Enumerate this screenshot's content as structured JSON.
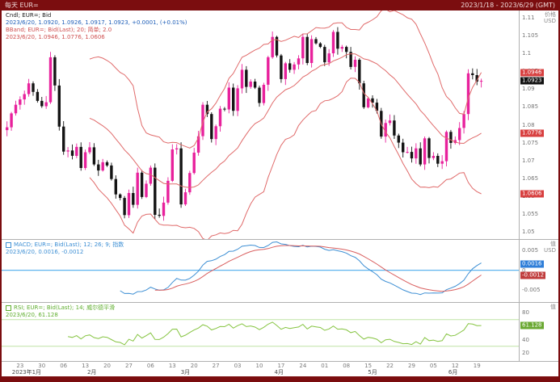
{
  "window": {
    "title_left": "每天 EUR=",
    "title_right": "2023/1/18 - 2023/6/29 (GMT)"
  },
  "colors": {
    "frame": "#7b0d0f",
    "up_candle": "#e8219c",
    "down_candle": "#141414",
    "bollinger": "#e06a6a",
    "macd_line": "#3d8fd4",
    "macd_signal": "#d95f5f",
    "macd_zero": "#5fb4ee",
    "rsi_line": "#85c440",
    "rsi_guide": "#bfe3a6",
    "last_price_bg": "#111111",
    "band_box_bg": "#d84040",
    "macd_box_bg": "#2f7ed8",
    "signal_box_bg": "#c03c3c",
    "rsi_box_bg": "#6aa832"
  },
  "price_panel": {
    "legend1": "Cndl; EUR=; Bid",
    "legend2": "2023/6/20, 1.0920, 1.0926, 1.0917, 1.0923, +0.0001, (+0.01%)",
    "legend3": "BBand; EUR=; Bid(Last); 20; 简单; 2.0",
    "legend4": "2023/6/20, 1.0946, 1.0776, 1.0606",
    "axis_title": "价格",
    "axis_unit": "USD",
    "ylim": [
      1.048,
      1.112
    ],
    "tick_step": 0.005,
    "boxes": [
      {
        "label": "1.0946",
        "value": 1.0946,
        "type": "band"
      },
      {
        "label": "1.0776",
        "value": 1.0776,
        "type": "band"
      },
      {
        "label": "1.0606",
        "value": 1.0606,
        "type": "band"
      },
      {
        "label": "1.0923",
        "value": 1.0923,
        "type": "last"
      }
    ]
  },
  "macd_panel": {
    "legend1": "MACD; EUR=; Bid(Last); 12; 26; 9; 指数",
    "legend2": "2023/6/20, 0.0016, -0.0012",
    "axis_title": "值",
    "axis_unit": "USD",
    "ylim": [
      -0.008,
      0.007
    ],
    "ticks": [
      0.005,
      0,
      -0.005
    ],
    "boxes": [
      {
        "label": "0.0016",
        "value": 0.0016,
        "type": "macd"
      },
      {
        "label": "-0.0012",
        "value": -0.0012,
        "type": "signal"
      }
    ]
  },
  "rsi_panel": {
    "legend1": "RSI; EUR=; Bid(Last); 14; 威尔德平滑",
    "legend2": "2023/6/20, 61.128",
    "axis_title": "值",
    "axis_unit": "",
    "ylim": [
      8,
      95
    ],
    "ticks": [
      80,
      60,
      40,
      20
    ],
    "guides": [
      70,
      30
    ],
    "boxes": [
      {
        "label": "61.128",
        "value": 61.128,
        "type": "rsi"
      }
    ]
  },
  "x_axis": {
    "slots": 117,
    "day_ticks": [
      {
        "i": 3,
        "label": "23"
      },
      {
        "i": 8,
        "label": "30"
      },
      {
        "i": 13,
        "label": "06"
      },
      {
        "i": 18,
        "label": "13"
      },
      {
        "i": 23,
        "label": "20"
      },
      {
        "i": 28,
        "label": "27"
      },
      {
        "i": 33,
        "label": "06"
      },
      {
        "i": 38,
        "label": "13"
      },
      {
        "i": 43,
        "label": "20"
      },
      {
        "i": 48,
        "label": "27"
      },
      {
        "i": 53,
        "label": "03"
      },
      {
        "i": 58,
        "label": "10"
      },
      {
        "i": 63,
        "label": "17"
      },
      {
        "i": 68,
        "label": "24"
      },
      {
        "i": 73,
        "label": "01"
      },
      {
        "i": 78,
        "label": "08"
      },
      {
        "i": 83,
        "label": "15"
      },
      {
        "i": 88,
        "label": "22"
      },
      {
        "i": 93,
        "label": "29"
      },
      {
        "i": 98,
        "label": "05"
      },
      {
        "i": 103,
        "label": "12"
      },
      {
        "i": 108,
        "label": "19"
      }
    ],
    "month_labels": [
      {
        "i": 4.5,
        "label": "2023年1月"
      },
      {
        "i": 19.5,
        "label": "2月"
      },
      {
        "i": 41,
        "label": "3月"
      },
      {
        "i": 62.5,
        "label": "4月"
      },
      {
        "i": 84,
        "label": "5月"
      },
      {
        "i": 102.5,
        "label": "6月"
      }
    ]
  },
  "chart_data": [
    {
      "type": "candlestick",
      "title": "EUR= Bid 每天 (Cndl + BBand 20, 2.0)",
      "x_range": [
        "2023/1/18",
        "2023/6/29"
      ],
      "ylim": [
        1.048,
        1.112
      ],
      "note": "daily closes; opens derived as previous close; Bollinger(20, ±2σ) overlay",
      "closes": [
        1.0793,
        1.0832,
        1.0856,
        1.0871,
        1.0886,
        1.0916,
        1.0892,
        1.0867,
        1.0852,
        1.0863,
        1.0989,
        1.091,
        1.0795,
        1.0725,
        1.0728,
        1.0713,
        1.0738,
        1.0679,
        1.0723,
        1.0737,
        1.0689,
        1.0672,
        1.0695,
        1.0686,
        1.0648,
        1.0605,
        1.0595,
        1.0547,
        1.0609,
        1.0576,
        1.0666,
        1.0598,
        1.0635,
        1.068,
        1.0548,
        1.0545,
        1.0582,
        1.0643,
        1.0731,
        1.0734,
        1.0577,
        1.0611,
        1.0665,
        1.0722,
        1.0768,
        1.0856,
        1.083,
        1.076,
        1.0796,
        1.0845,
        1.0843,
        1.0904,
        1.0839,
        1.0902,
        1.0954,
        1.0906,
        1.0921,
        1.0904,
        1.0861,
        1.0912,
        1.0989,
        1.1046,
        1.0994,
        1.0928,
        1.0972,
        1.0954,
        1.0969,
        1.0986,
        1.1046,
        1.0973,
        1.104,
        1.1028,
        1.1018,
        1.0975,
        1.1,
        1.106,
        1.1013,
        1.1018,
        1.1004,
        1.0962,
        1.0982,
        1.0916,
        1.0849,
        1.0874,
        1.0862,
        1.0839,
        1.0767,
        1.0805,
        1.0812,
        1.077,
        1.075,
        1.0723,
        1.0724,
        1.0706,
        1.0734,
        1.0689,
        1.0762,
        1.0707,
        1.0713,
        1.0691,
        1.0698,
        1.078,
        1.0749,
        1.0757,
        1.0791,
        1.083,
        1.0944,
        1.0939,
        1.0921,
        1.0923
      ],
      "bollinger_last_2023_06_20": [
        1.0946,
        1.0776,
        1.0606
      ],
      "last_candle_2023_06_20": {
        "open": 1.092,
        "high": 1.0926,
        "low": 1.0917,
        "close": 1.0923,
        "change": "+0.0001",
        "pct": "+0.01%"
      }
    },
    {
      "type": "line",
      "title": "MACD(12, 26, 9) 指数",
      "source": "computed from closes of chart 0",
      "last_2023_06_20": {
        "macd": 0.0016,
        "signal": -0.0012
      },
      "ylim": [
        -0.008,
        0.007
      ],
      "zero_line": 0
    },
    {
      "type": "line",
      "title": "RSI(14) 威尔德平滑",
      "source": "computed from closes of chart 0",
      "last_2023_06_20": 61.128,
      "ylim": [
        8,
        95
      ],
      "guides": [
        70,
        30
      ]
    }
  ]
}
